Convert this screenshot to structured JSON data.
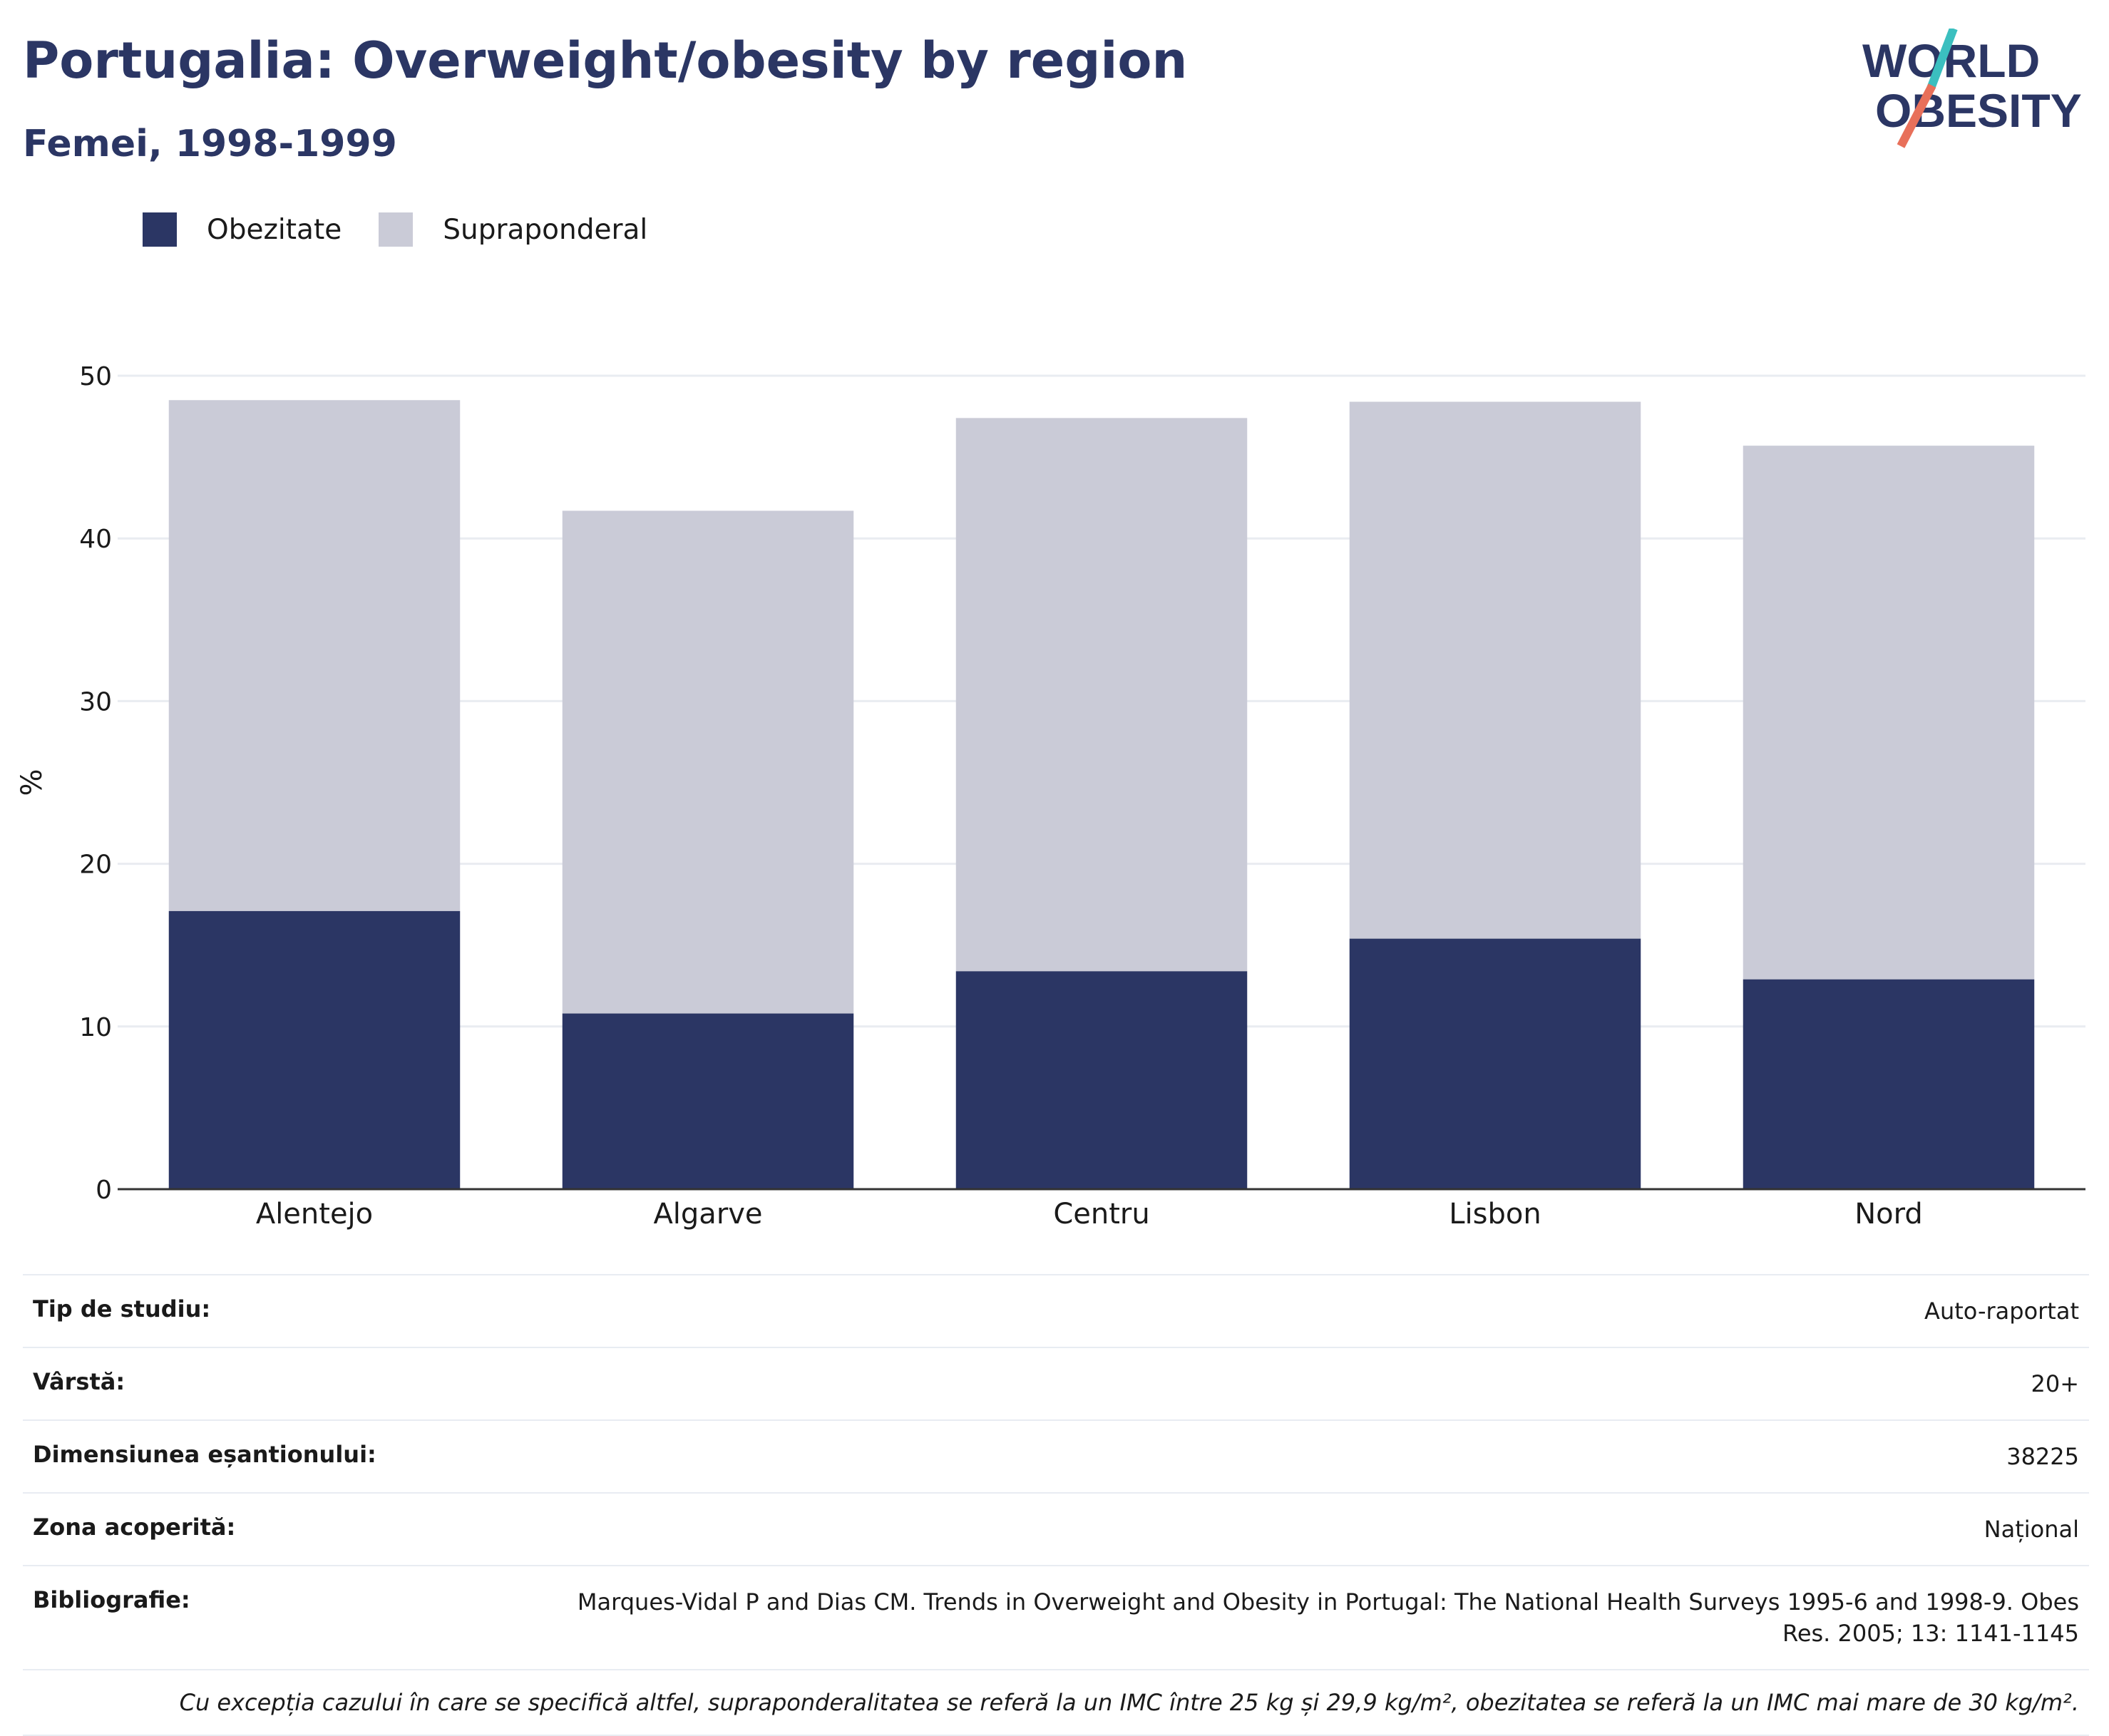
{
  "header": {
    "title": "Portugalia: Overweight/obesity by region",
    "subtitle": "Femei, 1998-1999"
  },
  "logo": {
    "line1": "WORLD",
    "line2": "OBESITY",
    "colors": {
      "text": "#2b3664",
      "slash_top": "#3bbfbf",
      "slash_bottom": "#e8705a"
    }
  },
  "legend": {
    "items": [
      {
        "label": "Obezitate",
        "color": "#2b3664"
      },
      {
        "label": "Supraponderal",
        "color": "#cacbd7"
      }
    ]
  },
  "chart_data": {
    "type": "bar",
    "stacked": true,
    "categories": [
      "Alentejo",
      "Algarve",
      "Centru",
      "Lisbon",
      "Nord"
    ],
    "series": [
      {
        "name": "Obezitate",
        "values": [
          17.1,
          10.8,
          13.4,
          15.4,
          12.9
        ],
        "color": "#2b3664"
      },
      {
        "name": "Supraponderal",
        "values": [
          31.4,
          30.9,
          34.0,
          33.0,
          32.8
        ],
        "color": "#cacbd7"
      }
    ],
    "totals": [
      48.5,
      41.7,
      47.4,
      48.4,
      45.7
    ],
    "ylabel": "%",
    "ylim": [
      0,
      50
    ],
    "yticks": [
      "0",
      "10",
      "20",
      "30",
      "40",
      "50"
    ],
    "grid": true,
    "legend_position": "top-left"
  },
  "info": {
    "rows": [
      {
        "label": "Tip de studiu:",
        "value": "Auto-raportat"
      },
      {
        "label": "Vârstă:",
        "value": "20+"
      },
      {
        "label": "Dimensiunea eșantionului:",
        "value": "38225"
      },
      {
        "label": "Zona acoperită:",
        "value": "Național"
      },
      {
        "label": "Bibliografie:",
        "value": "Marques-Vidal P and Dias CM. Trends in Overweight and Obesity in Portugal: The National Health Surveys 1995-6 and 1998-9. Obes Res. 2005; 13: 1141-1145"
      }
    ],
    "note": "Cu excepția cazului în care se specifică altfel, supraponderalitatea se referă la un IMC între 25 kg și 29,9 kg/m², obezitatea se referă la un IMC mai mare de 30 kg/m²."
  }
}
